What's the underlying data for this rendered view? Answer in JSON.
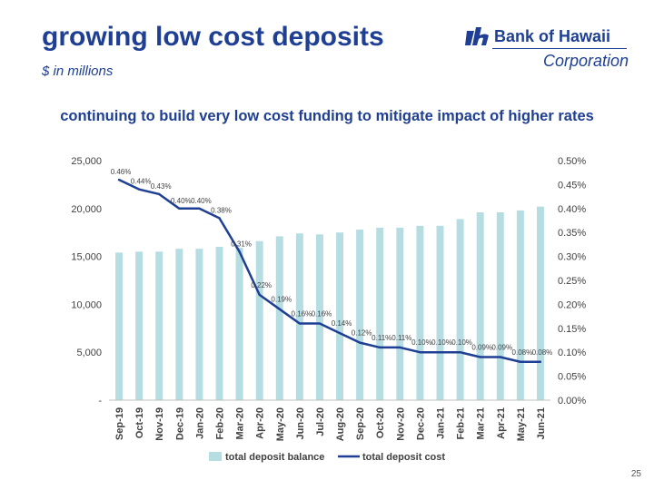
{
  "slide": {
    "title": "growing low cost deposits",
    "subtitle": "$ in millions",
    "headline": "continuing to build very low cost funding to mitigate impact of higher rates",
    "logo_name": "Bank of Hawaii",
    "logo_corp": "Corporation",
    "page_number": "25"
  },
  "colors": {
    "title": "#1f3f94",
    "bar": "#b5dde2",
    "line": "#1f3f94"
  },
  "chart_data": {
    "type": "bar+line",
    "categories": [
      "Sep-19",
      "Oct-19",
      "Nov-19",
      "Dec-19",
      "Jan-20",
      "Feb-20",
      "Mar-20",
      "Apr-20",
      "May-20",
      "Jun-20",
      "Jul-20",
      "Aug-20",
      "Sep-20",
      "Oct-20",
      "Nov-20",
      "Dec-20",
      "Jan-21",
      "Feb-21",
      "Mar-21",
      "Apr-21",
      "May-21",
      "Jun-21"
    ],
    "series": [
      {
        "name": "total deposit balance",
        "type": "bar",
        "axis": "left",
        "values": [
          15400,
          15500,
          15500,
          15800,
          15800,
          16000,
          15900,
          16600,
          17100,
          17400,
          17300,
          17500,
          17800,
          18000,
          18000,
          18200,
          18200,
          18900,
          19600,
          19600,
          19800,
          20200
        ]
      },
      {
        "name": "total deposit cost",
        "type": "line",
        "axis": "right",
        "values": [
          0.46,
          0.44,
          0.43,
          0.4,
          0.4,
          0.38,
          0.31,
          0.22,
          0.19,
          0.16,
          0.16,
          0.14,
          0.12,
          0.11,
          0.11,
          0.1,
          0.1,
          0.1,
          0.09,
          0.09,
          0.08,
          0.08
        ],
        "labels": [
          "0.46%",
          "0.44%",
          "0.43%",
          "0.40%",
          "0.40%",
          "0.38%",
          "0.31%",
          "0.22%",
          "0.19%",
          "0.16%",
          "0.16%",
          "0.14%",
          "0.12%",
          "0.11%",
          "0.11%",
          "0.10%",
          "0.10%",
          "0.10%",
          "0.09%",
          "0.09%",
          "0.08%",
          "0.08%"
        ]
      }
    ],
    "left_axis": {
      "ylim": [
        0,
        25000
      ],
      "ticks": [
        0,
        5000,
        10000,
        15000,
        20000,
        25000
      ],
      "tick_labels": [
        "-",
        "5,000",
        "10,000",
        "15,000",
        "20,000",
        "25,000"
      ]
    },
    "right_axis": {
      "ylim": [
        0,
        0.5
      ],
      "ticks": [
        0,
        0.05,
        0.1,
        0.15,
        0.2,
        0.25,
        0.3,
        0.35,
        0.4,
        0.45,
        0.5
      ],
      "tick_labels": [
        "0.00%",
        "0.05%",
        "0.10%",
        "0.15%",
        "0.20%",
        "0.25%",
        "0.30%",
        "0.35%",
        "0.40%",
        "0.45%",
        "0.50%"
      ]
    },
    "grid": false,
    "legend": "bottom"
  }
}
